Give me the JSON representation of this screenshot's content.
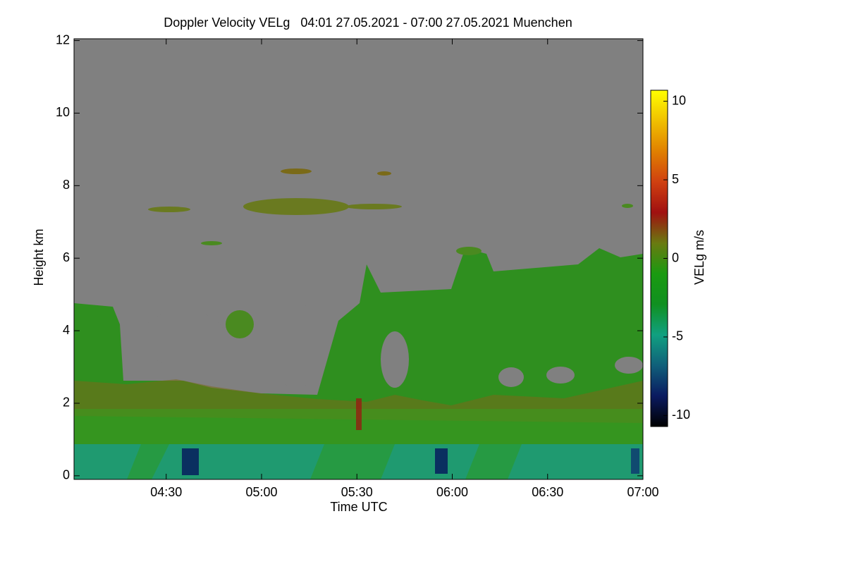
{
  "chart_data": {
    "type": "heatmap",
    "title": "Doppler Velocity VELg   04:01 27.05.2021 - 07:00 27.05.2021 Muenchen",
    "x_label": "Time UTC",
    "y_label": "Height km",
    "xlim": [
      241,
      420
    ],
    "xticks": [
      {
        "value": 270,
        "label": "04:30"
      },
      {
        "value": 300,
        "label": "05:00"
      },
      {
        "value": 330,
        "label": "05:30"
      },
      {
        "value": 360,
        "label": "06:00"
      },
      {
        "value": 390,
        "label": "06:30"
      },
      {
        "value": 420,
        "label": "07:00"
      }
    ],
    "ylim": [
      -0.1,
      12.05
    ],
    "yticks": [
      0,
      2,
      4,
      6,
      8,
      10,
      12
    ],
    "colorbar": {
      "label": "VELg m/s",
      "lim": [
        -10.7,
        10.7
      ],
      "ticks": [
        -10,
        -5,
        0,
        5,
        10
      ],
      "colors": [
        "#000000",
        "#0a1a60",
        "#10607a",
        "#10a080",
        "#109020",
        "#1a9a10",
        "#6a7a10",
        "#a01010",
        "#d04010",
        "#e08000",
        "#f0c000",
        "#ffff00"
      ]
    }
  }
}
